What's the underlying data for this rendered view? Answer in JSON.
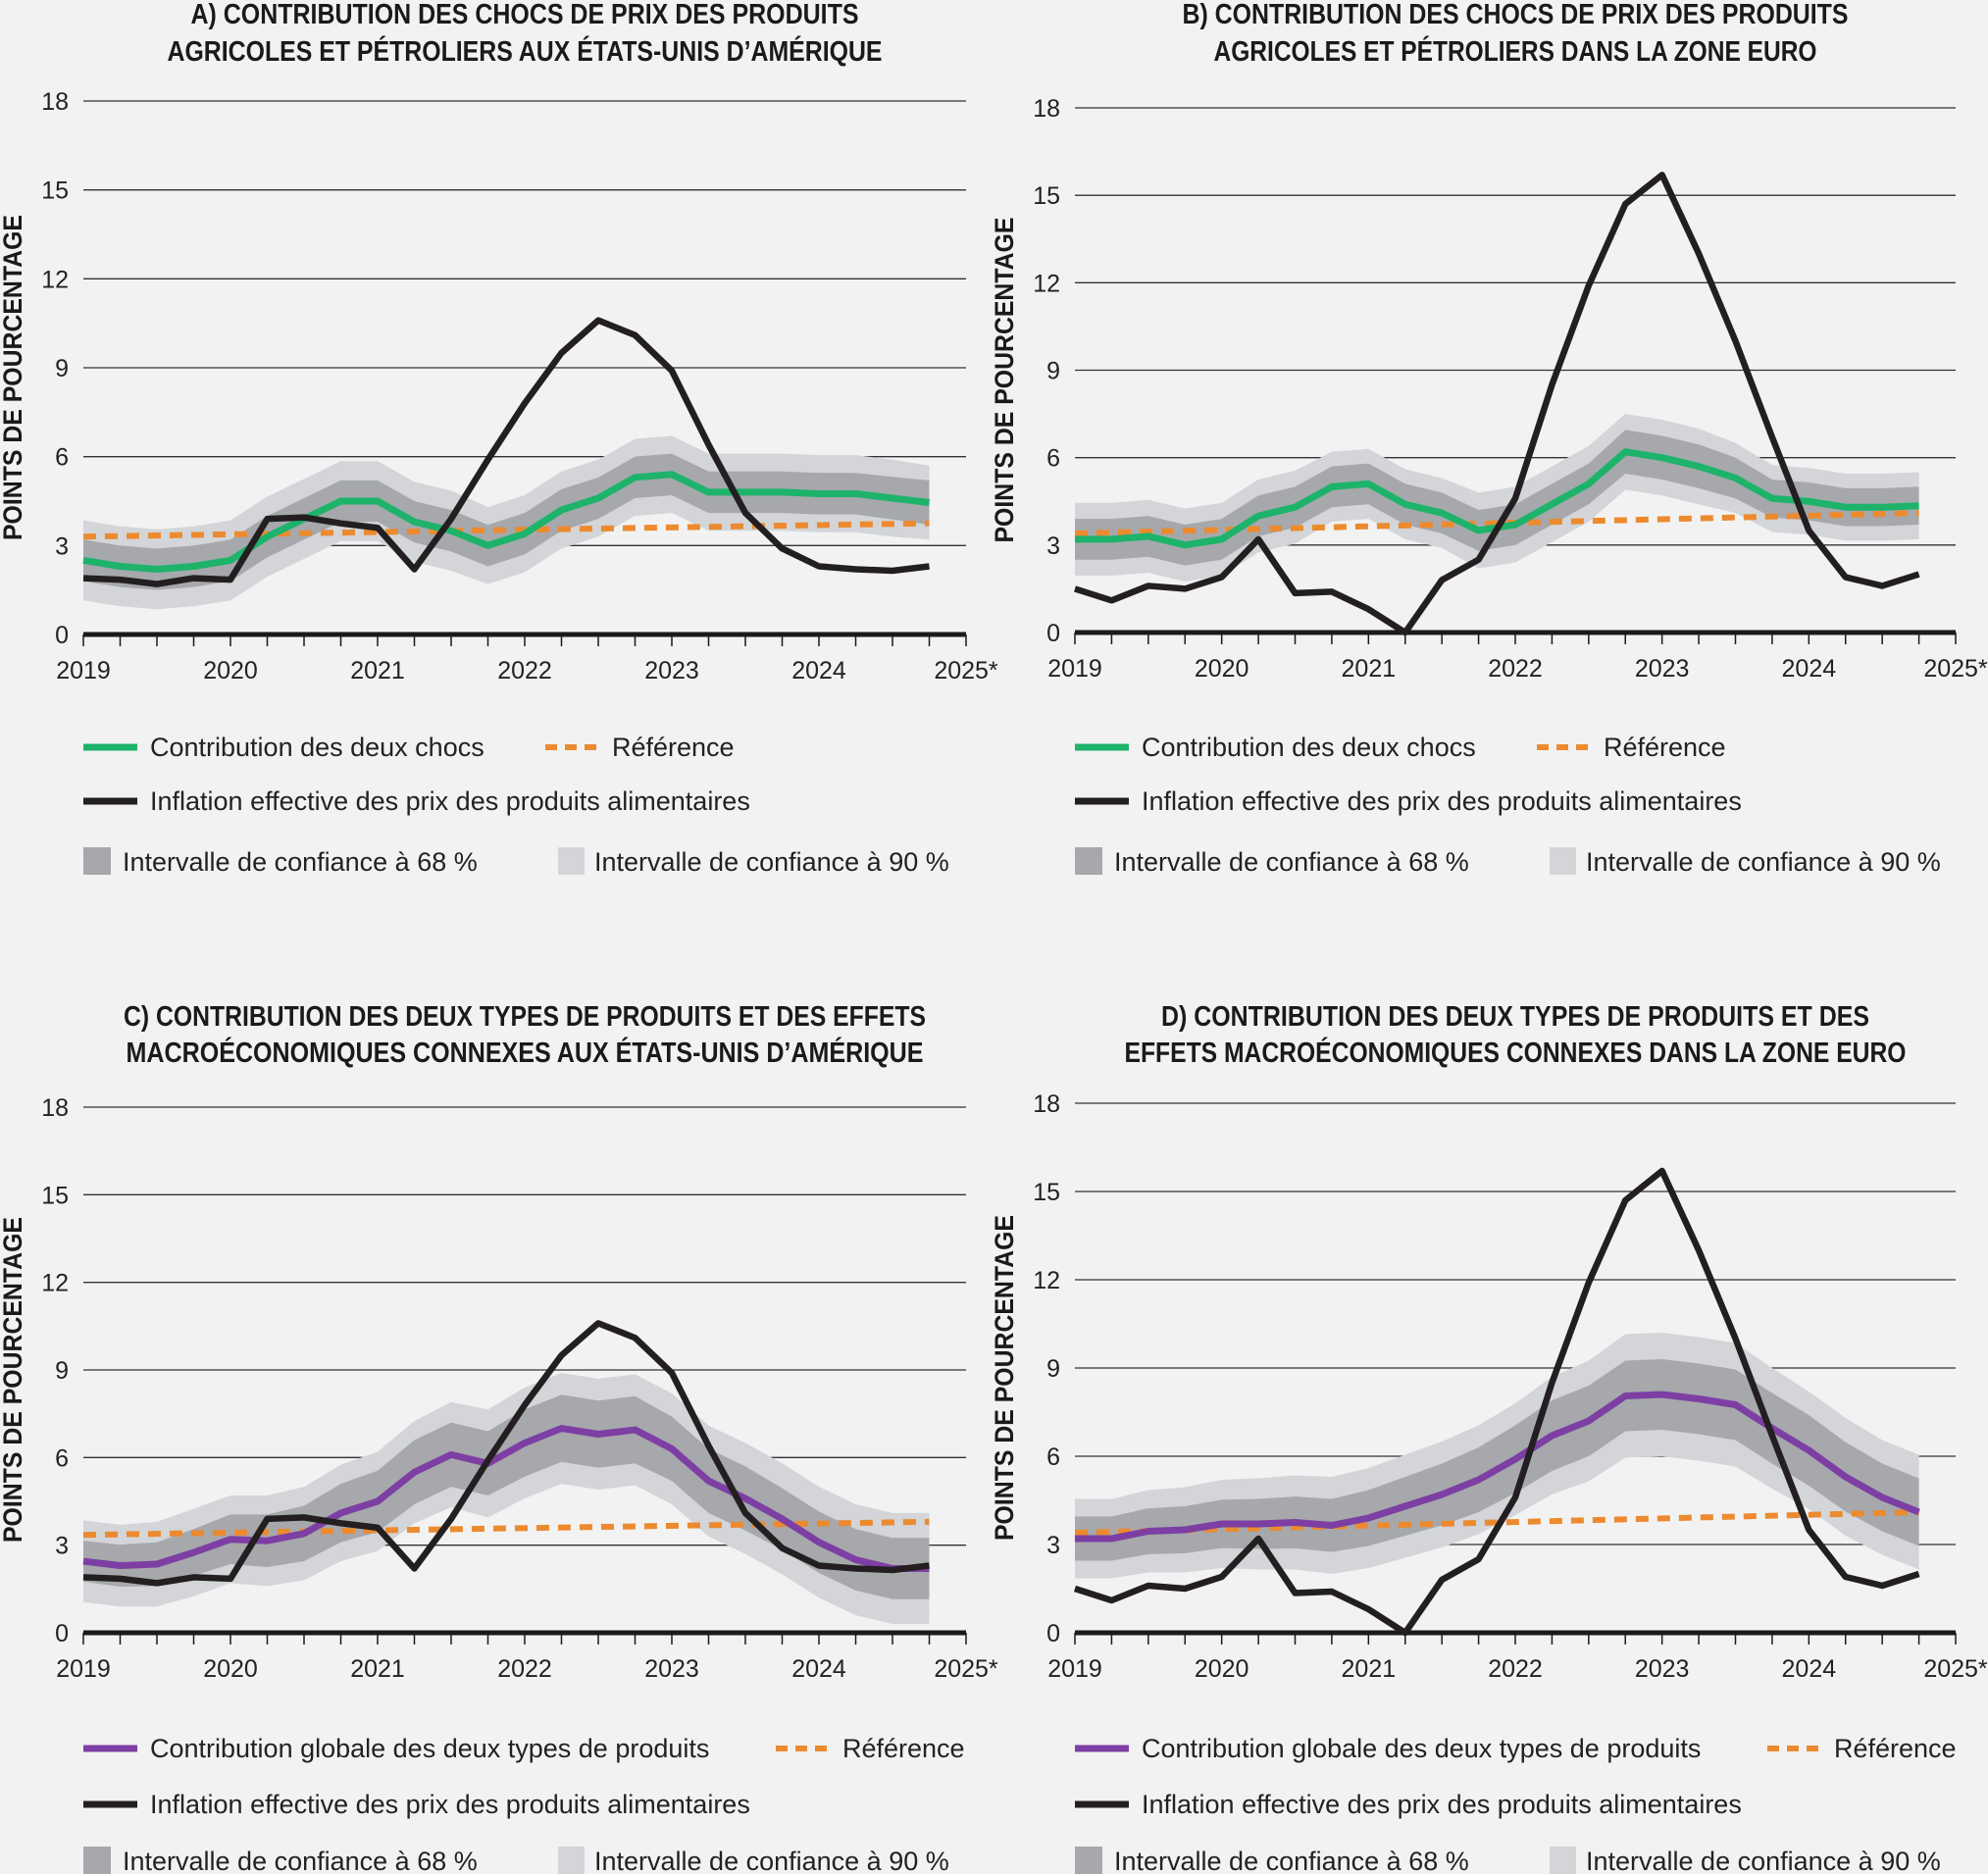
{
  "colors": {
    "green": "#1db36a",
    "purple": "#7d3fa3",
    "orange": "#ec8a2f",
    "black": "#231f20",
    "ci68": "#a6a8ac",
    "ci90": "#d3d5d8",
    "grid": "#333333",
    "background": "#f2f2f2"
  },
  "chart_data": [
    {
      "type": "line",
      "id": "A",
      "title": [
        "A) CONTRIBUTION DES CHOCS DE PRIX DES PRODUITS",
        "AGRICOLES ET PÉTROLIERS AUX ÉTATS-UNIS D’AMÉRIQUE"
      ],
      "ylabel": "POINTS DE POURCENTAGE",
      "ylim": [
        0,
        18
      ],
      "yticks": [
        "0",
        "3",
        "6",
        "9",
        "12",
        "15",
        "18"
      ],
      "xlim": [
        2019,
        2025
      ],
      "xticks": [
        "2019",
        "2020",
        "2021",
        "2022",
        "2023",
        "2024",
        "2025*"
      ],
      "grid": true,
      "x": [
        2019,
        2019.25,
        2019.5,
        2019.75,
        2020,
        2020.25,
        2020.5,
        2020.75,
        2021,
        2021.25,
        2021.5,
        2021.75,
        2022,
        2022.25,
        2022.5,
        2022.75,
        2023,
        2023.25,
        2023.5,
        2023.75,
        2024,
        2024.25,
        2024.5,
        2024.75
      ],
      "main": {
        "name": "Contribution des deux chocs",
        "color": "#1db36a",
        "values": [
          2.5,
          2.3,
          2.2,
          2.3,
          2.5,
          3.3,
          3.9,
          4.5,
          4.5,
          3.8,
          3.5,
          3.0,
          3.4,
          4.2,
          4.6,
          5.3,
          5.4,
          4.8,
          4.8,
          4.8,
          4.75,
          4.75,
          4.6,
          4.45
        ],
        "ci68_halfwidth": [
          0.7,
          0.7,
          0.7,
          0.7,
          0.7,
          0.7,
          0.7,
          0.7,
          0.7,
          0.7,
          0.7,
          0.7,
          0.7,
          0.7,
          0.7,
          0.7,
          0.7,
          0.7,
          0.7,
          0.7,
          0.7,
          0.7,
          0.72,
          0.75
        ],
        "ci90_halfwidth": [
          1.35,
          1.35,
          1.35,
          1.35,
          1.35,
          1.35,
          1.35,
          1.35,
          1.35,
          1.35,
          1.35,
          1.3,
          1.3,
          1.3,
          1.3,
          1.3,
          1.3,
          1.3,
          1.3,
          1.3,
          1.3,
          1.3,
          1.3,
          1.25
        ]
      },
      "actual": {
        "name": "Inflation effective des prix des produits alimentaires",
        "values": [
          1.9,
          1.85,
          1.7,
          1.9,
          1.85,
          3.9,
          3.95,
          3.75,
          3.6,
          2.2,
          3.9,
          5.9,
          7.8,
          9.5,
          10.6,
          10.1,
          8.9,
          6.4,
          4.1,
          2.9,
          2.3,
          2.2,
          2.15,
          2.3
        ]
      },
      "reference": {
        "name": "Référence",
        "x": [
          2019,
          2024.75
        ],
        "values": [
          3.3,
          3.75
        ]
      },
      "legend": {
        "ci68": "Intervalle de confiance à 68 %",
        "ci90": "Intervalle de confiance à 90 %"
      }
    },
    {
      "type": "line",
      "id": "B",
      "title": [
        "B) CONTRIBUTION DES CHOCS DE PRIX DES PRODUITS",
        "AGRICOLES ET PÉTROLIERS DANS LA ZONE EURO"
      ],
      "ylabel": "POINTS DE POURCENTAGE",
      "ylim": [
        0,
        18
      ],
      "yticks": [
        "0",
        "3",
        "6",
        "9",
        "12",
        "15",
        "18"
      ],
      "xlim": [
        2019,
        2025
      ],
      "xticks": [
        "2019",
        "2020",
        "2021",
        "2022",
        "2023",
        "2024",
        "2025*"
      ],
      "grid": true,
      "x": [
        2019,
        2019.25,
        2019.5,
        2019.75,
        2020,
        2020.25,
        2020.5,
        2020.75,
        2021,
        2021.25,
        2021.5,
        2021.75,
        2022,
        2022.25,
        2022.5,
        2022.75,
        2023,
        2023.25,
        2023.5,
        2023.75,
        2024,
        2024.25,
        2024.5,
        2024.75
      ],
      "main": {
        "name": "Contribution des deux chocs",
        "color": "#1db36a",
        "values": [
          3.2,
          3.2,
          3.3,
          3.0,
          3.2,
          4.0,
          4.3,
          5.0,
          5.1,
          4.4,
          4.1,
          3.5,
          3.7,
          4.4,
          5.1,
          6.2,
          6.0,
          5.7,
          5.3,
          4.6,
          4.5,
          4.3,
          4.3,
          4.35
        ],
        "ci68_halfwidth": [
          0.7,
          0.7,
          0.7,
          0.7,
          0.7,
          0.7,
          0.7,
          0.7,
          0.7,
          0.7,
          0.7,
          0.7,
          0.7,
          0.7,
          0.7,
          0.75,
          0.75,
          0.75,
          0.7,
          0.65,
          0.65,
          0.65,
          0.65,
          0.65
        ],
        "ci90_halfwidth": [
          1.25,
          1.25,
          1.25,
          1.25,
          1.25,
          1.25,
          1.25,
          1.2,
          1.2,
          1.2,
          1.2,
          1.3,
          1.3,
          1.3,
          1.3,
          1.3,
          1.3,
          1.3,
          1.2,
          1.15,
          1.15,
          1.15,
          1.15,
          1.15
        ]
      },
      "actual": {
        "name": "Inflation effective des prix des produits alimentaires",
        "values": [
          1.5,
          1.1,
          1.6,
          1.5,
          1.9,
          3.2,
          1.35,
          1.4,
          0.8,
          0.0,
          1.8,
          2.5,
          4.6,
          8.5,
          11.9,
          14.7,
          15.7,
          13.0,
          10.0,
          6.7,
          3.5,
          1.9,
          1.6,
          2.0
        ]
      },
      "reference": {
        "name": "Référence",
        "x": [
          2019,
          2024.75
        ],
        "values": [
          3.4,
          4.1
        ]
      },
      "legend": {
        "ci68": "Intervalle de confiance à 68 %",
        "ci90": "Intervalle de confiance à 90 %"
      }
    },
    {
      "type": "line",
      "id": "C",
      "title": [
        "C) CONTRIBUTION DES DEUX TYPES DE PRODUITS ET DES EFFETS",
        "MACROÉCONOMIQUES CONNEXES AUX ÉTATS-UNIS D’AMÉRIQUE"
      ],
      "ylabel": "POINTS DE POURCENTAGE",
      "ylim": [
        0,
        18
      ],
      "yticks": [
        "0",
        "3",
        "6",
        "9",
        "12",
        "15",
        "18"
      ],
      "xlim": [
        2019,
        2025
      ],
      "xticks": [
        "2019",
        "2020",
        "2021",
        "2022",
        "2023",
        "2024",
        "2025*"
      ],
      "grid": true,
      "x": [
        2019,
        2019.25,
        2019.5,
        2019.75,
        2020,
        2020.25,
        2020.5,
        2020.75,
        2021,
        2021.25,
        2021.5,
        2021.75,
        2022,
        2022.25,
        2022.5,
        2022.75,
        2023,
        2023.25,
        2023.5,
        2023.75,
        2024,
        2024.25,
        2024.5,
        2024.75
      ],
      "main": {
        "name": "Contribution globale des deux types de produits",
        "color": "#7d3fa3",
        "values": [
          2.45,
          2.3,
          2.35,
          2.75,
          3.2,
          3.15,
          3.4,
          4.1,
          4.5,
          5.5,
          6.1,
          5.8,
          6.5,
          7.0,
          6.8,
          6.95,
          6.3,
          5.2,
          4.6,
          3.9,
          3.1,
          2.5,
          2.2,
          2.2
        ],
        "ci68_halfwidth": [
          0.7,
          0.72,
          0.75,
          0.8,
          0.85,
          0.9,
          0.95,
          1.0,
          1.05,
          1.1,
          1.1,
          1.1,
          1.15,
          1.15,
          1.15,
          1.15,
          1.1,
          1.1,
          1.1,
          1.05,
          1.05,
          1.05,
          1.05,
          1.05
        ],
        "ci90_halfwidth": [
          1.4,
          1.4,
          1.45,
          1.5,
          1.5,
          1.55,
          1.6,
          1.65,
          1.7,
          1.75,
          1.8,
          1.85,
          1.9,
          1.9,
          1.9,
          1.9,
          1.9,
          1.9,
          1.9,
          1.9,
          1.9,
          1.9,
          1.9,
          1.9
        ]
      },
      "actual": {
        "name": "Inflation effective des prix des produits alimentaires",
        "values": [
          1.9,
          1.85,
          1.7,
          1.9,
          1.85,
          3.9,
          3.95,
          3.75,
          3.6,
          2.2,
          3.9,
          5.9,
          7.8,
          9.5,
          10.6,
          10.1,
          8.9,
          6.4,
          4.1,
          2.9,
          2.3,
          2.2,
          2.15,
          2.3
        ]
      },
      "reference": {
        "name": "Référence",
        "x": [
          2019,
          2024.75
        ],
        "values": [
          3.35,
          3.8
        ]
      },
      "legend": {
        "ci68": "Intervalle de confiance à 68 %",
        "ci90": "Intervalle de confiance à 90 %"
      }
    },
    {
      "type": "line",
      "id": "D",
      "title": [
        "D) CONTRIBUTION DES DEUX TYPES DE PRODUITS ET DES",
        "EFFETS MACROÉCONOMIQUES CONNEXES DANS LA ZONE EURO"
      ],
      "ylabel": "POINTS DE POURCENTAGE",
      "ylim": [
        0,
        18
      ],
      "yticks": [
        "0",
        "3",
        "6",
        "9",
        "12",
        "15",
        "18"
      ],
      "xlim": [
        2019,
        2025
      ],
      "xticks": [
        "2019",
        "2020",
        "2021",
        "2022",
        "2023",
        "2024",
        "2025*"
      ],
      "grid": true,
      "x": [
        2019,
        2019.25,
        2019.5,
        2019.75,
        2020,
        2020.25,
        2020.5,
        2020.75,
        2021,
        2021.25,
        2021.5,
        2021.75,
        2022,
        2022.25,
        2022.5,
        2022.75,
        2023,
        2023.25,
        2023.5,
        2023.75,
        2024,
        2024.25,
        2024.5,
        2024.75
      ],
      "main": {
        "name": "Contribution globale des deux types de produits",
        "color": "#7d3fa3",
        "values": [
          3.2,
          3.2,
          3.45,
          3.5,
          3.7,
          3.7,
          3.75,
          3.65,
          3.9,
          4.3,
          4.7,
          5.2,
          5.9,
          6.7,
          7.2,
          8.05,
          8.1,
          7.95,
          7.75,
          6.95,
          6.2,
          5.3,
          4.6,
          4.1
        ],
        "ci68_halfwidth": [
          0.75,
          0.75,
          0.78,
          0.8,
          0.82,
          0.85,
          0.88,
          0.9,
          0.95,
          1.0,
          1.05,
          1.1,
          1.15,
          1.2,
          1.2,
          1.2,
          1.2,
          1.2,
          1.2,
          1.2,
          1.2,
          1.18,
          1.15,
          1.15
        ],
        "ci90_halfwidth": [
          1.35,
          1.35,
          1.4,
          1.45,
          1.5,
          1.55,
          1.6,
          1.65,
          1.7,
          1.75,
          1.8,
          1.85,
          1.9,
          2.0,
          2.05,
          2.1,
          2.1,
          2.1,
          2.1,
          2.05,
          2.0,
          2.0,
          1.95,
          1.95
        ]
      },
      "actual": {
        "name": "Inflation effective des prix des produits alimentaires",
        "values": [
          1.5,
          1.1,
          1.6,
          1.5,
          1.9,
          3.2,
          1.35,
          1.4,
          0.8,
          0.0,
          1.8,
          2.5,
          4.6,
          8.5,
          11.9,
          14.7,
          15.7,
          13.0,
          10.0,
          6.7,
          3.5,
          1.9,
          1.6,
          2.0
        ]
      },
      "reference": {
        "name": "Référence",
        "x": [
          2019,
          2024.75
        ],
        "values": [
          3.4,
          4.1
        ]
      },
      "legend": {
        "ci68": "Intervalle de confiance à 68 %",
        "ci90": "Intervalle de confiance à 90 %"
      }
    }
  ]
}
